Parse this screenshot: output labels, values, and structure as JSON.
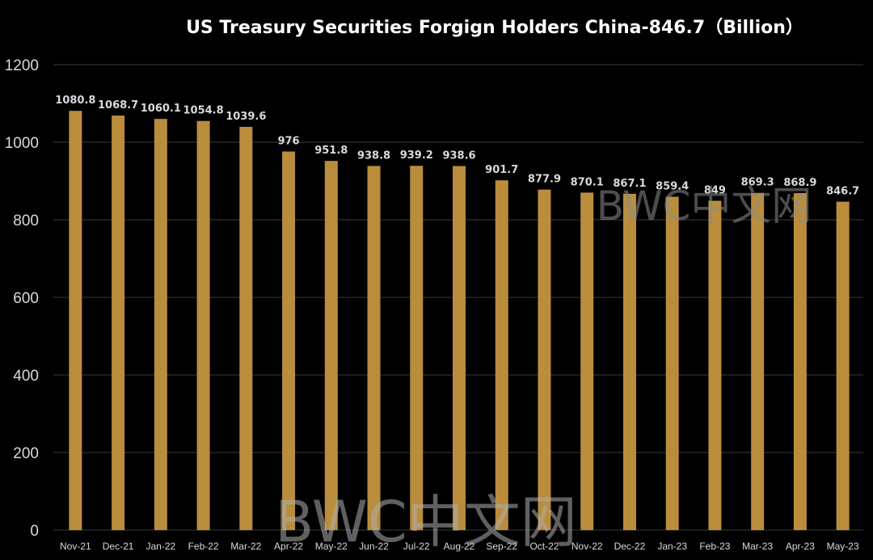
{
  "chart_data": {
    "type": "bar",
    "title": "US Treasury Securities Forgign Holders China-846.7（Billion）",
    "categories": [
      "Nov-21",
      "Dec-21",
      "Jan-22",
      "Feb-22",
      "Mar-22",
      "Apr-22",
      "May-22",
      "Jun-22",
      "Jul-22",
      "Aug-22",
      "Sep-22",
      "Oct-22",
      "Nov-22",
      "Dec-22",
      "Jan-23",
      "Feb-23",
      "Mar-23",
      "Apr-23",
      "May-23"
    ],
    "values": [
      1080.8,
      1068.7,
      1060.1,
      1054.8,
      1039.6,
      976,
      951.8,
      938.8,
      939.2,
      938.6,
      901.7,
      877.9,
      870.1,
      867.1,
      859.4,
      849,
      869.3,
      868.9,
      846.7
    ],
    "ylim": [
      0,
      1200
    ],
    "yticks": [
      0,
      200,
      400,
      600,
      800,
      1000,
      1200
    ],
    "grid": true,
    "legend": "none",
    "colors": {
      "bar": "#B98D3C",
      "background": "#000000",
      "grid": "#3A3A3A",
      "text": "#FFFFFF",
      "tick": "#D9D9D9",
      "label": "#D9D9D9"
    }
  },
  "watermark": {
    "text": "BWC中文网"
  }
}
